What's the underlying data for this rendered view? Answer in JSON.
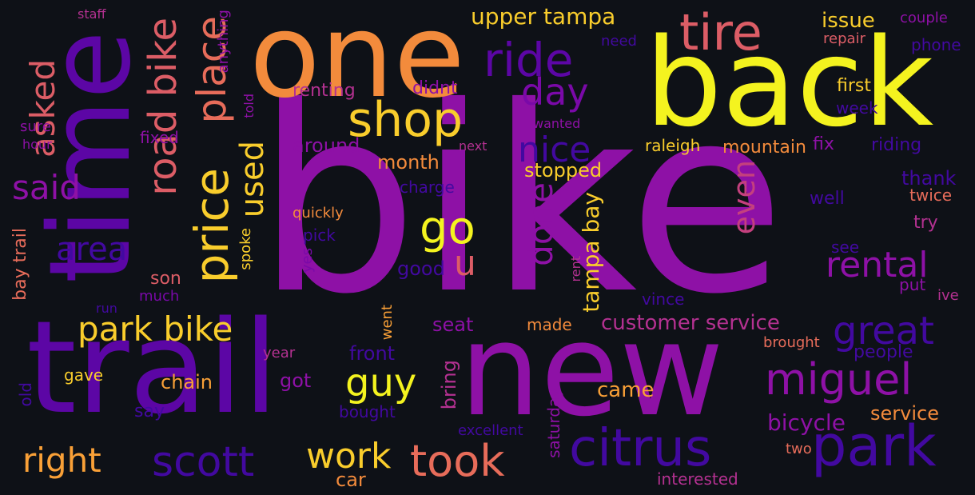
{
  "words": [
    {
      "text": "bike",
      "color": "#8e11a6"
    },
    {
      "text": "back",
      "color": "#f4f31f"
    },
    {
      "text": "one",
      "color": "#f38b3c"
    },
    {
      "text": "time",
      "color": "#5c06a5"
    },
    {
      "text": "trail",
      "color": "#5c06a5"
    },
    {
      "text": "new",
      "color": "#8e11a6"
    },
    {
      "text": "tire",
      "color": "#dc5d66"
    },
    {
      "text": "ride",
      "color": "#5c06a5"
    },
    {
      "text": "shop",
      "color": "#f9cd2c"
    },
    {
      "text": "day",
      "color": "#7a09a8"
    },
    {
      "text": "nice",
      "color": "#4209a0"
    },
    {
      "text": "price",
      "color": "#f9cd2c"
    },
    {
      "text": "place",
      "color": "#e76c5a"
    },
    {
      "text": "road bike",
      "color": "#dc5d66"
    },
    {
      "text": "asked",
      "color": "#dc5d66"
    },
    {
      "text": "used",
      "color": "#f9cd2c"
    },
    {
      "text": "said",
      "color": "#8e11a6"
    },
    {
      "text": "go",
      "color": "#f4f31f"
    },
    {
      "text": "u",
      "color": "#dc5d66"
    },
    {
      "text": "done",
      "color": "#8e11a6"
    },
    {
      "text": "area",
      "color": "#4209a0"
    },
    {
      "text": "park bike",
      "color": "#f9cd2c"
    },
    {
      "text": "rental",
      "color": "#8e11a6"
    },
    {
      "text": "even",
      "color": "#c4407e"
    },
    {
      "text": "great",
      "color": "#4209a0"
    },
    {
      "text": "miguel",
      "color": "#8e11a6"
    },
    {
      "text": "guy",
      "color": "#f4f31f"
    },
    {
      "text": "customer service",
      "color": "#b43191"
    },
    {
      "text": "tampa bay",
      "color": "#f9cd2c"
    },
    {
      "text": "citrus",
      "color": "#4209a0"
    },
    {
      "text": "park",
      "color": "#4209a0"
    },
    {
      "text": "scott",
      "color": "#4209a0"
    },
    {
      "text": "took",
      "color": "#e76c5a"
    },
    {
      "text": "right",
      "color": "#f9a037"
    },
    {
      "text": "work",
      "color": "#f9cd2c"
    },
    {
      "text": "upper tampa",
      "color": "#f9cd2c"
    },
    {
      "text": "issue",
      "color": "#f9cd2c"
    },
    {
      "text": "couple",
      "color": "#8e11a6"
    },
    {
      "text": "phone",
      "color": "#4209a0"
    },
    {
      "text": "repair",
      "color": "#dc5d66"
    },
    {
      "text": "need",
      "color": "#4209a0"
    },
    {
      "text": "first",
      "color": "#f9cd2c"
    },
    {
      "text": "week",
      "color": "#4209a0"
    },
    {
      "text": "wanted",
      "color": "#8e11a6"
    },
    {
      "text": "renting",
      "color": "#b43191"
    },
    {
      "text": "didnt",
      "color": "#8e11a6"
    },
    {
      "text": "raleigh",
      "color": "#f9cd2c"
    },
    {
      "text": "mountain",
      "color": "#f38b3c"
    },
    {
      "text": "fix",
      "color": "#8e11a6"
    },
    {
      "text": "riding",
      "color": "#4209a0"
    },
    {
      "text": "around",
      "color": "#8e11a6"
    },
    {
      "text": "next",
      "color": "#b43191"
    },
    {
      "text": "month",
      "color": "#f38b3c"
    },
    {
      "text": "stopped",
      "color": "#f9cd2c"
    },
    {
      "text": "charge",
      "color": "#4209a0"
    },
    {
      "text": "thank",
      "color": "#4209a0"
    },
    {
      "text": "twice",
      "color": "#e76c5a"
    },
    {
      "text": "well",
      "color": "#4209a0"
    },
    {
      "text": "try",
      "color": "#b43191"
    },
    {
      "text": "see",
      "color": "#4209a0"
    },
    {
      "text": "put",
      "color": "#8e11a6"
    },
    {
      "text": "ive",
      "color": "#b43191"
    },
    {
      "text": "quickly",
      "color": "#f38b3c"
    },
    {
      "text": "pick",
      "color": "#4209a0"
    },
    {
      "text": "good",
      "color": "#4209a0"
    },
    {
      "text": "son",
      "color": "#dc5d66"
    },
    {
      "text": "much",
      "color": "#7a09a8"
    },
    {
      "text": "run",
      "color": "#4209a0"
    },
    {
      "text": "bay trail",
      "color": "#e76c5a"
    },
    {
      "text": "sure",
      "color": "#8e11a6"
    },
    {
      "text": "hour",
      "color": "#8e11a6"
    },
    {
      "text": "staff",
      "color": "#b43191"
    },
    {
      "text": "fixed",
      "color": "#8e11a6"
    },
    {
      "text": "anything",
      "color": "#8e11a6"
    },
    {
      "text": "told",
      "color": "#8e11a6"
    },
    {
      "text": "spoke",
      "color": "#f9cd2c"
    },
    {
      "text": "yes",
      "color": "#7a09a8"
    },
    {
      "text": "went",
      "color": "#f9a037"
    },
    {
      "text": "rent",
      "color": "#b43191"
    },
    {
      "text": "vince",
      "color": "#4209a0"
    },
    {
      "text": "seat",
      "color": "#8e11a6"
    },
    {
      "text": "made",
      "color": "#f38b3c"
    },
    {
      "text": "people",
      "color": "#4209a0"
    },
    {
      "text": "brought",
      "color": "#e76c5a"
    },
    {
      "text": "front",
      "color": "#4209a0"
    },
    {
      "text": "year",
      "color": "#b43191"
    },
    {
      "text": "gave",
      "color": "#f9cd2c"
    },
    {
      "text": "chain",
      "color": "#f9a037"
    },
    {
      "text": "got",
      "color": "#8e11a6"
    },
    {
      "text": "old",
      "color": "#4209a0"
    },
    {
      "text": "say",
      "color": "#4209a0"
    },
    {
      "text": "bought",
      "color": "#4209a0"
    },
    {
      "text": "bring",
      "color": "#b43191"
    },
    {
      "text": "came",
      "color": "#f9a037"
    },
    {
      "text": "bicycle",
      "color": "#8e11a6"
    },
    {
      "text": "service",
      "color": "#f38b3c"
    },
    {
      "text": "excellent",
      "color": "#4209a0"
    },
    {
      "text": "saturday",
      "color": "#8e11a6"
    },
    {
      "text": "two",
      "color": "#e76c5a"
    },
    {
      "text": "car",
      "color": "#f38b3c"
    },
    {
      "text": "interested",
      "color": "#b43191"
    }
  ]
}
